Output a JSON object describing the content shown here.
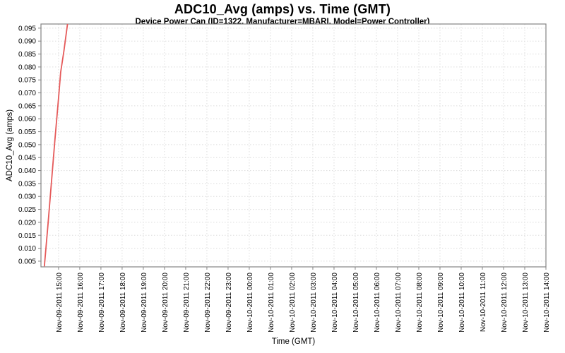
{
  "chart": {
    "title": "ADC10_Avg (amps) vs. Time (GMT)",
    "subtitle": "Device Power Can (ID=1322, Manufacturer=MBARI, Model=Power Controller)",
    "x_axis_label": "Time (GMT)",
    "y_axis_label": "ADC10_Avg (amps)"
  },
  "chart_data": {
    "type": "line",
    "title": "ADC10_Avg (amps) vs. Time (GMT)",
    "subtitle": "Device Power Can (ID=1322, Manufacturer=MBARI, Model=Power Controller)",
    "xlabel": "Time (GMT)",
    "ylabel": "ADC10_Avg (amps)",
    "legend": "none",
    "grid": "dotted light gray, both axes",
    "x_tick_labels": [
      "Nov-09-2011 15:00",
      "Nov-09-2011 16:00",
      "Nov-09-2011 17:00",
      "Nov-09-2011 18:00",
      "Nov-09-2011 19:00",
      "Nov-09-2011 20:00",
      "Nov-09-2011 21:00",
      "Nov-09-2011 22:00",
      "Nov-09-2011 23:00",
      "Nov-10-2011 00:00",
      "Nov-10-2011 01:00",
      "Nov-10-2011 02:00",
      "Nov-10-2011 03:00",
      "Nov-10-2011 04:00",
      "Nov-10-2011 05:00",
      "Nov-10-2011 06:00",
      "Nov-10-2011 07:00",
      "Nov-10-2011 08:00",
      "Nov-10-2011 09:00",
      "Nov-10-2011 10:00",
      "Nov-10-2011 11:00",
      "Nov-10-2011 12:00",
      "Nov-10-2011 13:00",
      "Nov-10-2011 14:00"
    ],
    "x_tick_hours": [
      0,
      1,
      2,
      3,
      4,
      5,
      6,
      7,
      8,
      9,
      10,
      11,
      12,
      13,
      14,
      15,
      16,
      17,
      18,
      19,
      20,
      21,
      22,
      23
    ],
    "xlim_hours": [
      -0.83,
      23.0
    ],
    "y_ticks": [
      0.005,
      0.01,
      0.015,
      0.02,
      0.025,
      0.03,
      0.035,
      0.04,
      0.045,
      0.05,
      0.055,
      0.06,
      0.065,
      0.07,
      0.075,
      0.08,
      0.085,
      0.09,
      0.095
    ],
    "y_tick_decimals": 3,
    "ylim": [
      0.0028,
      0.0966
    ],
    "series": [
      {
        "name": "ADC10_Avg",
        "color": "#e55a5a",
        "points": [
          {
            "time": "Nov-09-2011 14:20",
            "hour": -0.67,
            "value": 0.003
          },
          {
            "time": "Nov-09-2011 14:30",
            "hour": -0.5,
            "value": 0.019
          },
          {
            "time": "Nov-09-2011 14:40",
            "hour": -0.33,
            "value": 0.036
          },
          {
            "time": "Nov-09-2011 14:50",
            "hour": -0.17,
            "value": 0.052
          },
          {
            "time": "Nov-09-2011 15:00",
            "hour": 0.0,
            "value": 0.068
          },
          {
            "time": "Nov-09-2011 15:06",
            "hour": 0.1,
            "value": 0.078
          },
          {
            "time": "Nov-09-2011 15:15",
            "hour": 0.25,
            "value": 0.086
          },
          {
            "time": "Nov-09-2011 15:26",
            "hour": 0.43,
            "value": 0.097
          }
        ]
      }
    ],
    "colors": {
      "background": "#ffffff",
      "plot_background": "#ffffff",
      "gridline": "#dcdcdc",
      "plot_border": "#848484",
      "tick_mark": "#848484",
      "text": "#000000",
      "series": "#e55a5a"
    }
  }
}
